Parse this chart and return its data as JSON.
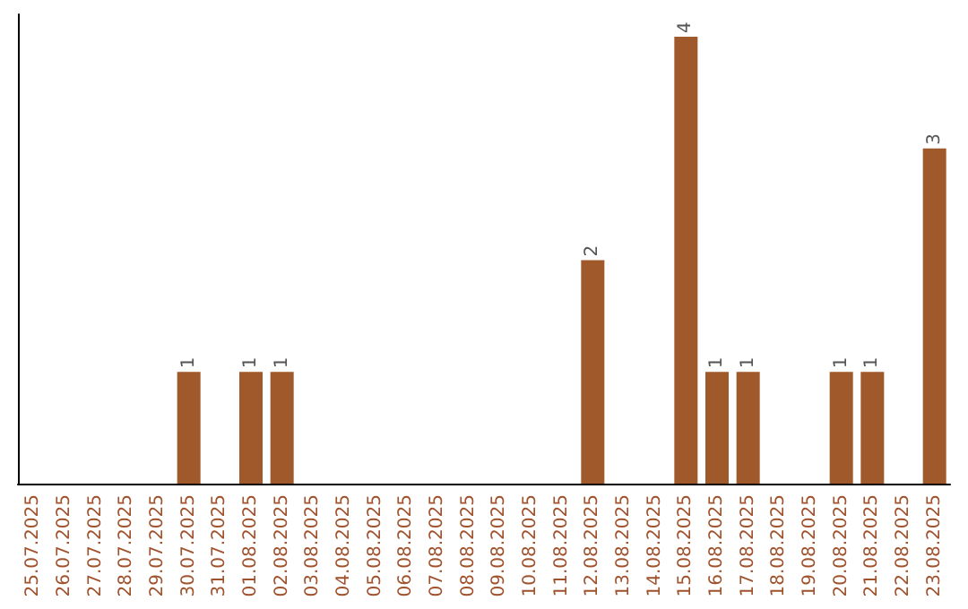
{
  "chart_data": {
    "type": "bar",
    "categories": [
      "25.07.2025",
      "26.07.2025",
      "27.07.2025",
      "28.07.2025",
      "29.07.2025",
      "30.07.2025",
      "31.07.2025",
      "01.08.2025",
      "02.08.2025",
      "03.08.2025",
      "04.08.2025",
      "05.08.2025",
      "06.08.2025",
      "07.08.2025",
      "08.08.2025",
      "09.08.2025",
      "10.08.2025",
      "11.08.2025",
      "12.08.2025",
      "13.08.2025",
      "14.08.2025",
      "15.08.2025",
      "16.08.2025",
      "17.08.2025",
      "18.08.2025",
      "19.08.2025",
      "20.08.2025",
      "21.08.2025",
      "22.08.2025",
      "23.08.2025"
    ],
    "values": [
      0,
      0,
      0,
      0,
      0,
      1,
      0,
      1,
      1,
      0,
      0,
      0,
      0,
      0,
      0,
      0,
      0,
      0,
      2,
      0,
      0,
      4,
      1,
      1,
      0,
      0,
      1,
      1,
      0,
      3
    ],
    "value_labels": [
      null,
      null,
      null,
      null,
      null,
      "1",
      null,
      "1",
      "1",
      null,
      null,
      null,
      null,
      null,
      null,
      null,
      null,
      null,
      "2",
      null,
      null,
      "4",
      "1",
      "1",
      null,
      null,
      "1",
      "1",
      null,
      "3"
    ],
    "color": "#a0592a"
  }
}
